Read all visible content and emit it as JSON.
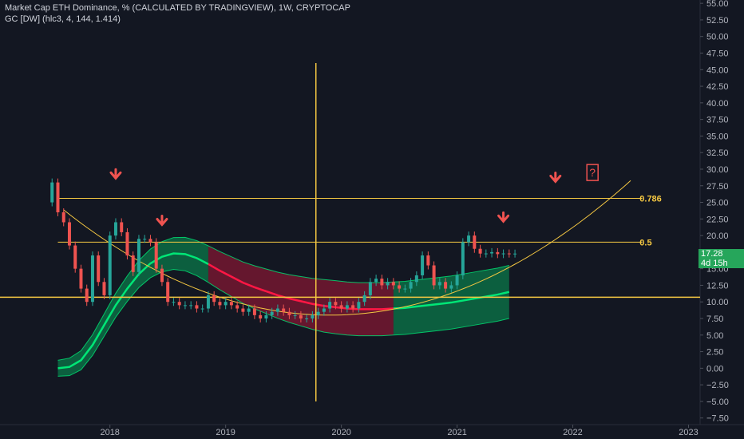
{
  "legend": {
    "title": "Market Cap ETH Dominance, % (CALCULATED BY TRADINGVIEW), 1W, CRYPTOCAP",
    "indicator": "GC [DW] (hlc3, 4, 144, 1.414)"
  },
  "price_label": {
    "value": "17.28",
    "countdown": "4d 15h"
  },
  "colors": {
    "background": "#131722",
    "up_candle": "#26a69a",
    "down_candle": "#ef5350",
    "guide_line": "#f5c842",
    "band_green": "#00e676",
    "band_red": "#ff1744",
    "arrow": "#ef5350",
    "price_tag": "#26a65b"
  },
  "annotations": {
    "fib_levels": [
      {
        "label": "0.786",
        "value": 25.6
      },
      {
        "label": "0.5",
        "value": 19.0
      }
    ],
    "horizontal_line": 10.7,
    "vertical_line_date": "2019.78",
    "question_mark": "?",
    "arrow_icons": [
      "down-arrow-icon",
      "down-arrow-icon",
      "down-arrow-icon",
      "down-arrow-icon"
    ]
  },
  "chart_data": {
    "type": "line",
    "title": "Market Cap ETH Dominance, % (CALCULATED BY TRADINGVIEW), 1W, CRYPTOCAP",
    "xlabel": "",
    "ylabel": "",
    "x_ticks": [
      "2018",
      "2019",
      "2020",
      "2021",
      "2022",
      "2023"
    ],
    "x_tick_values": [
      2018.0,
      2019.0,
      2020.0,
      2021.0,
      2022.0,
      2023.0
    ],
    "y_ticks": [
      "55.00",
      "52.50",
      "50.00",
      "47.50",
      "45.00",
      "42.50",
      "40.00",
      "37.50",
      "35.00",
      "32.50",
      "30.00",
      "27.50",
      "25.00",
      "22.50",
      "20.00",
      "17.50",
      "15.00",
      "12.50",
      "10.00",
      "7.50",
      "5.00",
      "2.50",
      "0.00",
      "−2.50",
      "−5.00",
      "−7.50"
    ],
    "y_tick_values": [
      55,
      52.5,
      50,
      47.5,
      45,
      42.5,
      40,
      37.5,
      35,
      32.5,
      30,
      27.5,
      25,
      22.5,
      20,
      17.5,
      15,
      12.5,
      10,
      7.5,
      5,
      2.5,
      0,
      -2.5,
      -5,
      -7.5
    ],
    "ylim": [
      -8.5,
      55.5
    ],
    "xlim": [
      2017.05,
      2023.1
    ],
    "grid": false,
    "series": [
      {
        "name": "ETH Dominance",
        "x": [
          2017.45,
          2017.5,
          2017.55,
          2017.6,
          2017.65,
          2017.7,
          2017.75,
          2017.8,
          2017.85,
          2017.9,
          2017.95,
          2018.0,
          2018.05,
          2018.1,
          2018.15,
          2018.2,
          2018.25,
          2018.3,
          2018.35,
          2018.4,
          2018.45,
          2018.5,
          2018.55,
          2018.6,
          2018.65,
          2018.7,
          2018.75,
          2018.8,
          2018.85,
          2018.9,
          2018.95,
          2019.0,
          2019.05,
          2019.1,
          2019.15,
          2019.2,
          2019.25,
          2019.3,
          2019.35,
          2019.4,
          2019.45,
          2019.5,
          2019.55,
          2019.6,
          2019.65,
          2019.7,
          2019.75,
          2019.8,
          2019.85,
          2019.9,
          2019.95,
          2020.0,
          2020.05,
          2020.1,
          2020.15,
          2020.2,
          2020.25,
          2020.3,
          2020.35,
          2020.4,
          2020.45,
          2020.5,
          2020.55,
          2020.6,
          2020.65,
          2020.7,
          2020.75,
          2020.8,
          2020.85,
          2020.9,
          2020.95,
          2021.0,
          2021.05,
          2021.1,
          2021.15,
          2021.2,
          2021.25,
          2021.3,
          2021.35,
          2021.4,
          2021.45,
          2021.5
        ],
        "values": [
          25.0,
          28.0,
          23.5,
          22.0,
          18.5,
          15.0,
          12.0,
          10.0,
          17.0,
          13.0,
          11.0,
          20.0,
          22.0,
          20.5,
          17.0,
          14.5,
          19.5,
          19.5,
          19.0,
          15.0,
          13.0,
          10.0,
          10.0,
          9.5,
          9.5,
          9.5,
          9.0,
          9.0,
          11.0,
          10.0,
          9.5,
          10.0,
          9.5,
          9.0,
          8.5,
          9.0,
          8.0,
          7.5,
          8.0,
          8.5,
          9.0,
          8.5,
          8.0,
          8.0,
          7.5,
          7.5,
          8.0,
          8.5,
          9.0,
          10.0,
          9.5,
          9.0,
          9.5,
          9.0,
          10.0,
          11.0,
          13.0,
          13.5,
          12.5,
          13.0,
          12.5,
          12.0,
          12.0,
          13.0,
          14.0,
          17.0,
          15.5,
          12.5,
          13.0,
          12.0,
          12.5,
          14.0,
          19.0,
          20.0,
          18.0,
          17.28,
          17.3,
          17.5,
          17.2,
          17.3,
          17.28,
          17.28
        ]
      },
      {
        "name": "",
        "x": [
          2017.55,
          2017.65,
          2017.75,
          2017.85,
          2017.95,
          2018.05,
          2018.15,
          2018.25,
          2018.35,
          2018.45,
          2018.55,
          2018.65,
          2018.75,
          2018.85,
          2018.95,
          2019.05,
          2019.15,
          2019.25,
          2019.35,
          2019.45,
          2019.55,
          2019.65,
          2019.75,
          2019.85,
          2019.95,
          2020.05,
          2020.15,
          2020.25,
          2020.35,
          2020.45,
          2020.55,
          2020.65,
          2020.75,
          2020.85,
          2020.95,
          2021.05,
          2021.15,
          2021.25,
          2021.35,
          2021.45
        ],
        "values": [
          0.0,
          0.2,
          1.2,
          3.5,
          6.5,
          9.5,
          12.0,
          14.2,
          15.8,
          16.8,
          17.3,
          17.2,
          16.6,
          15.7,
          14.7,
          13.8,
          12.9,
          12.2,
          11.6,
          11.0,
          10.5,
          10.1,
          9.7,
          9.4,
          9.2,
          9.0,
          8.9,
          8.9,
          8.9,
          9.0,
          9.1,
          9.3,
          9.5,
          9.7,
          9.9,
          10.2,
          10.5,
          10.8,
          11.1,
          11.5
        ]
      }
    ]
  }
}
